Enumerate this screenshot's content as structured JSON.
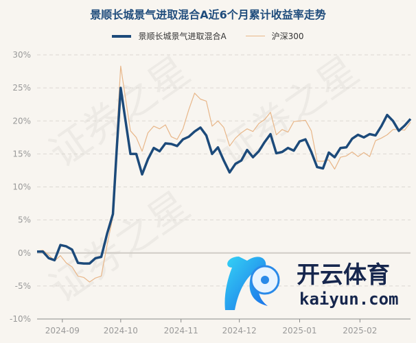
{
  "watermark": "证券之星",
  "logo": {
    "brand_cn": "开云体育",
    "brand_url": "kaiyun.com"
  },
  "chart_data": {
    "type": "line",
    "title": "景顺长城景气进取混合A近6个月累计收益率走势",
    "xlabel": "",
    "ylabel": "",
    "ylim": [
      -10,
      30
    ],
    "yticks": [
      -10,
      -5,
      0,
      5,
      10,
      15,
      20,
      25,
      30
    ],
    "ytick_labels": [
      "-10%",
      "-5%",
      "0%",
      "5%",
      "10%",
      "15%",
      "20%",
      "25%",
      "30%"
    ],
    "xlim": [
      "2024-08-19",
      "2025-02-27"
    ],
    "xticks": [
      "2024-09-01",
      "2024-10-01",
      "2024-11-01",
      "2024-12-01",
      "2025-01-01",
      "2025-02-01"
    ],
    "xtick_labels": [
      "2024-09",
      "2024-10",
      "2024-11",
      "2024-12",
      "2025-01",
      "2025-02"
    ],
    "grid": true,
    "legend_position": "top",
    "x": [
      "2024-08-19",
      "2024-08-22",
      "2024-08-25",
      "2024-08-28",
      "2024-08-31",
      "2024-09-03",
      "2024-09-06",
      "2024-09-09",
      "2024-09-12",
      "2024-09-15",
      "2024-09-18",
      "2024-09-21",
      "2024-09-24",
      "2024-09-27",
      "2024-09-29",
      "2024-10-01",
      "2024-10-06",
      "2024-10-09",
      "2024-10-12",
      "2024-10-15",
      "2024-10-18",
      "2024-10-21",
      "2024-10-24",
      "2024-10-27",
      "2024-10-30",
      "2024-11-02",
      "2024-11-05",
      "2024-11-08",
      "2024-11-11",
      "2024-11-14",
      "2024-11-17",
      "2024-11-20",
      "2024-11-23",
      "2024-11-26",
      "2024-11-29",
      "2024-12-02",
      "2024-12-05",
      "2024-12-08",
      "2024-12-11",
      "2024-12-14",
      "2024-12-17",
      "2024-12-20",
      "2024-12-23",
      "2024-12-26",
      "2024-12-29",
      "2025-01-01",
      "2025-01-04",
      "2025-01-07",
      "2025-01-10",
      "2025-01-13",
      "2025-01-16",
      "2025-01-19",
      "2025-01-22",
      "2025-01-25",
      "2025-01-28",
      "2025-01-31",
      "2025-02-03",
      "2025-02-06",
      "2025-02-09",
      "2025-02-12",
      "2025-02-15",
      "2025-02-18",
      "2025-02-21",
      "2025-02-24",
      "2025-02-27"
    ],
    "series": [
      {
        "name": "景顺长城景气进取混合A",
        "color": "#1c4a7a",
        "values": [
          0.2,
          0.2,
          -0.8,
          -1.1,
          1.2,
          1.0,
          0.5,
          -1.5,
          -1.6,
          -1.6,
          -0.8,
          -0.6,
          2.9,
          5.9,
          16.0,
          25.0,
          15.0,
          15.0,
          11.9,
          14.2,
          15.9,
          15.4,
          16.6,
          16.5,
          16.2,
          17.2,
          17.6,
          18.4,
          19.0,
          17.8,
          15.0,
          16.0,
          14.0,
          12.2,
          13.5,
          14.0,
          15.6,
          14.5,
          15.4,
          16.8,
          18.0,
          15.1,
          15.3,
          15.9,
          15.5,
          16.9,
          17.2,
          15.3,
          13.0,
          12.8,
          15.2,
          14.5,
          15.9,
          16.0,
          17.3,
          17.9,
          17.5,
          18.0,
          17.8,
          19.2,
          20.9,
          20.0,
          18.5,
          19.3,
          20.3
        ]
      },
      {
        "name": "沪深300",
        "color": "#e8b688",
        "values": [
          0.3,
          0.4,
          -0.3,
          -1.2,
          -0.4,
          -1.5,
          -2.1,
          -3.5,
          -3.7,
          -4.4,
          -3.8,
          -3.5,
          1.2,
          5.5,
          18.0,
          28.3,
          18.5,
          17.5,
          15.4,
          18.2,
          19.2,
          18.8,
          19.4,
          17.6,
          17.2,
          18.8,
          21.7,
          24.2,
          23.3,
          23.0,
          19.2,
          20.0,
          19.0,
          16.2,
          17.4,
          18.2,
          18.8,
          18.4,
          19.6,
          20.2,
          21.3,
          17.9,
          18.7,
          18.3,
          19.9,
          20.0,
          20.1,
          18.5,
          13.9,
          13.9,
          14.1,
          12.7,
          14.5,
          14.7,
          15.3,
          14.6,
          15.2,
          14.6,
          17.0,
          17.4,
          17.9,
          18.7,
          18.7,
          18.6,
          19.8
        ]
      }
    ]
  }
}
